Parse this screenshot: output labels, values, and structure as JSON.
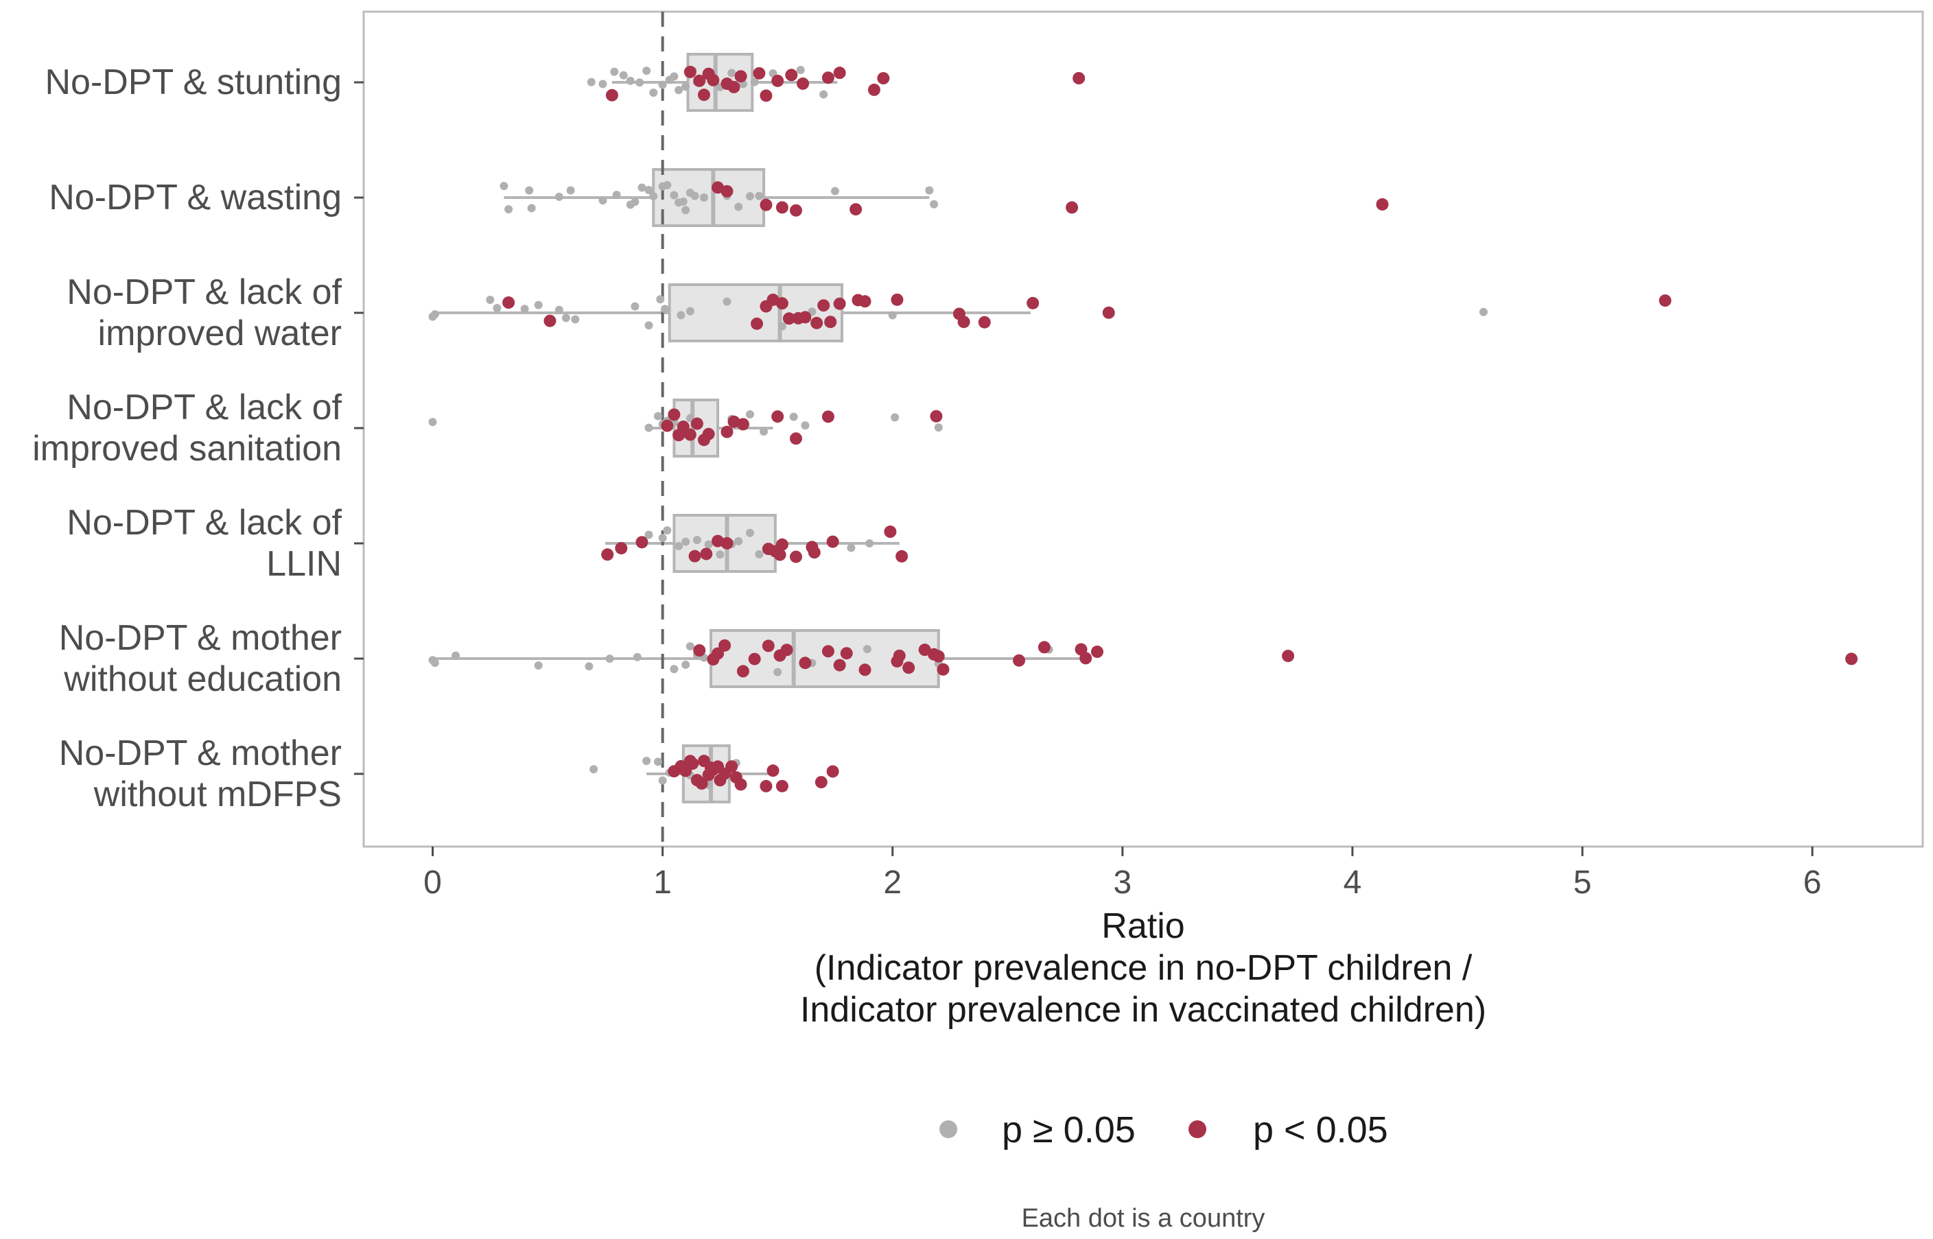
{
  "chart_data": {
    "type": "boxplot",
    "title": "",
    "xlabel_lines": [
      "Ratio",
      "(Indicator prevalence in no-DPT children /",
      "Indicator prevalence in vaccinated children)"
    ],
    "xlim": [
      -0.3,
      6.48
    ],
    "x_ticks": [
      0,
      1,
      2,
      3,
      4,
      5,
      6
    ],
    "reference_line": 1,
    "caption": "Each dot is a country",
    "colors": {
      "not_significant": "#b0b0b0",
      "significant": "#a8324a",
      "box_fill": "#e5e5e5",
      "box_stroke": "#b5b5b5",
      "reference_line": "#666666",
      "panel_border": "#bdbdbd"
    },
    "legend": [
      {
        "label": "p ≥ 0.05",
        "color": "#b0b0b0"
      },
      {
        "label": "p < 0.05",
        "color": "#a8324a"
      }
    ],
    "categories": [
      {
        "label": [
          "No-DPT & stunting"
        ],
        "box": {
          "q1": 1.11,
          "median": 1.23,
          "q3": 1.39,
          "whisker_low": 0.78,
          "whisker_high": 1.76
        },
        "grey": [
          0.69,
          0.74,
          0.79,
          0.83,
          0.86,
          0.9,
          0.93,
          0.96,
          1.0,
          1.03,
          1.05,
          1.07,
          1.1,
          1.13,
          1.15,
          1.2,
          1.25,
          1.3,
          1.35,
          1.4,
          1.48,
          1.6,
          1.7
        ],
        "red": [
          0.78,
          1.12,
          1.16,
          1.18,
          1.2,
          1.22,
          1.28,
          1.31,
          1.34,
          1.42,
          1.45,
          1.5,
          1.56,
          1.61,
          1.72,
          1.77,
          1.92,
          1.96,
          2.81
        ]
      },
      {
        "label": [
          "No-DPT & wasting"
        ],
        "box": {
          "q1": 0.96,
          "median": 1.22,
          "q3": 1.44,
          "whisker_low": 0.31,
          "whisker_high": 2.16
        },
        "grey": [
          0.31,
          0.33,
          0.42,
          0.43,
          0.55,
          0.6,
          0.74,
          0.8,
          0.86,
          0.88,
          0.91,
          0.94,
          0.96,
          1.0,
          1.02,
          1.05,
          1.07,
          1.09,
          1.1,
          1.12,
          1.14,
          1.18,
          1.28,
          1.33,
          1.38,
          1.42,
          1.75,
          2.16,
          2.18
        ],
        "red": [
          1.24,
          1.28,
          1.45,
          1.52,
          1.58,
          1.84,
          2.78,
          4.13
        ]
      },
      {
        "label": [
          "No-DPT & lack of",
          "improved water"
        ],
        "box": {
          "q1": 1.03,
          "median": 1.51,
          "q3": 1.78,
          "whisker_low": 0.0,
          "whisker_high": 2.6
        },
        "grey": [
          0.0,
          0.01,
          0.25,
          0.28,
          0.4,
          0.46,
          0.55,
          0.58,
          0.62,
          0.88,
          0.94,
          0.99,
          1.01,
          1.08,
          1.12,
          1.28,
          1.52,
          1.65,
          1.72,
          2.0,
          4.57
        ],
        "red": [
          0.33,
          0.51,
          1.41,
          1.45,
          1.48,
          1.52,
          1.55,
          1.59,
          1.62,
          1.67,
          1.7,
          1.73,
          1.77,
          1.85,
          1.88,
          2.02,
          2.29,
          2.31,
          2.4,
          2.61,
          2.94,
          5.36
        ]
      },
      {
        "label": [
          "No-DPT & lack of",
          "improved sanitation"
        ],
        "box": {
          "q1": 1.05,
          "median": 1.13,
          "q3": 1.24,
          "whisker_low": 0.94,
          "whisker_high": 1.48
        },
        "grey": [
          0.0,
          0.94,
          0.98,
          1.0,
          1.02,
          1.05,
          1.08,
          1.12,
          1.3,
          1.38,
          1.44,
          1.57,
          1.62,
          2.01,
          2.2
        ],
        "red": [
          1.02,
          1.05,
          1.07,
          1.09,
          1.12,
          1.15,
          1.18,
          1.2,
          1.28,
          1.31,
          1.35,
          1.5,
          1.58,
          1.72,
          2.19
        ]
      },
      {
        "label": [
          "No-DPT & lack of",
          "LLIN"
        ],
        "box": {
          "q1": 1.05,
          "median": 1.28,
          "q3": 1.49,
          "whisker_low": 0.75,
          "whisker_high": 2.03
        },
        "grey": [
          0.94,
          1.0,
          1.02,
          1.07,
          1.1,
          1.15,
          1.2,
          1.25,
          1.3,
          1.33,
          1.38,
          1.42,
          1.82,
          1.9
        ],
        "red": [
          0.76,
          0.82,
          0.91,
          1.14,
          1.19,
          1.24,
          1.28,
          1.46,
          1.49,
          1.51,
          1.52,
          1.58,
          1.65,
          1.66,
          1.74,
          1.99,
          2.04
        ]
      },
      {
        "label": [
          "No-DPT & mother",
          "without education"
        ],
        "box": {
          "q1": 1.21,
          "median": 1.57,
          "q3": 2.2,
          "whisker_low": 0.0,
          "whisker_high": 2.86
        },
        "grey": [
          0.0,
          0.01,
          0.1,
          0.46,
          0.68,
          0.77,
          0.89,
          1.05,
          1.1,
          1.12,
          1.15,
          1.18,
          1.5,
          1.65,
          1.89,
          2.2,
          2.68
        ],
        "red": [
          1.16,
          1.22,
          1.24,
          1.27,
          1.35,
          1.4,
          1.46,
          1.51,
          1.54,
          1.62,
          1.72,
          1.77,
          1.8,
          1.88,
          2.02,
          2.03,
          2.07,
          2.14,
          2.18,
          2.2,
          2.22,
          2.55,
          2.66,
          2.82,
          2.84,
          2.89,
          3.72,
          6.17
        ]
      },
      {
        "label": [
          "No-DPT & mother",
          "without mDFPS"
        ],
        "box": {
          "q1": 1.09,
          "median": 1.21,
          "q3": 1.29,
          "whisker_low": 0.93,
          "whisker_high": 1.48
        },
        "grey": [
          0.7,
          0.93,
          0.98,
          1.0,
          1.03,
          1.12,
          1.2,
          1.32
        ],
        "red": [
          1.05,
          1.08,
          1.1,
          1.12,
          1.13,
          1.15,
          1.17,
          1.18,
          1.2,
          1.21,
          1.22,
          1.24,
          1.25,
          1.27,
          1.3,
          1.32,
          1.34,
          1.45,
          1.48,
          1.52,
          1.69,
          1.74
        ]
      }
    ]
  }
}
